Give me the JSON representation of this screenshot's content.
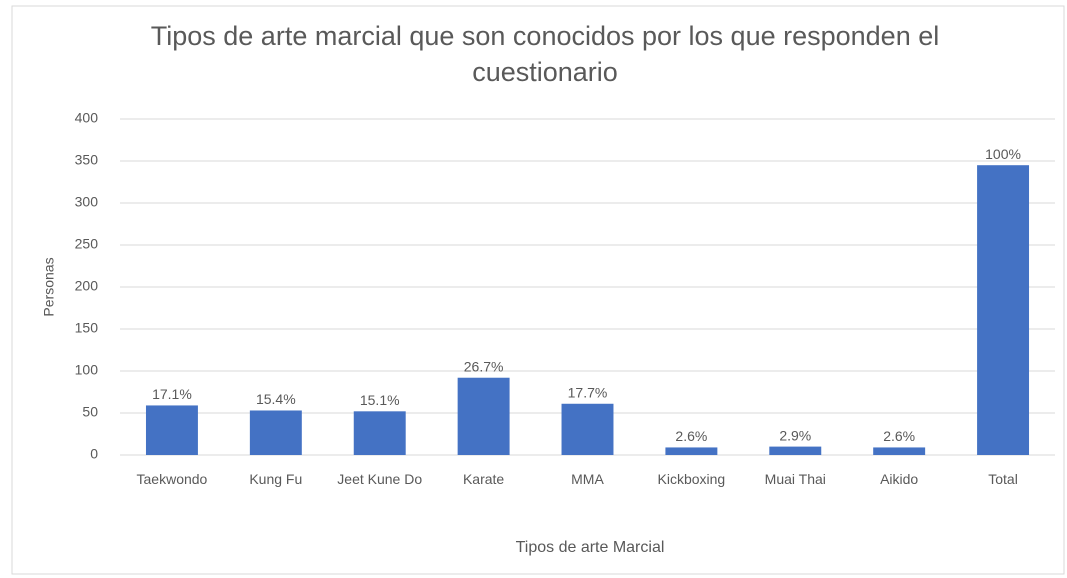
{
  "chart_data": {
    "type": "bar",
    "title": "Tipos de arte marcial que son conocidos por los que responden el cuestionario",
    "x_label": "Tipos de arte Marcial",
    "y_label": "Personas",
    "categories": [
      "Taekwondo",
      "Kung Fu",
      "Jeet Kune Do",
      "Karate",
      "MMA",
      "Kickboxing",
      "Muai Thai",
      "Aikido",
      "Total"
    ],
    "values": [
      59,
      53,
      52,
      92,
      61,
      9,
      10,
      9,
      345
    ],
    "data_labels": [
      "17.1%",
      "15.4%",
      "15.1%",
      "26.7%",
      "17.7%",
      "2.6%",
      "2.9%",
      "2.6%",
      "100%"
    ],
    "color": "#4472c4",
    "ylim": [
      0,
      400
    ],
    "yticks": [
      0,
      50,
      100,
      150,
      200,
      250,
      300,
      350,
      400
    ],
    "grid": true
  }
}
